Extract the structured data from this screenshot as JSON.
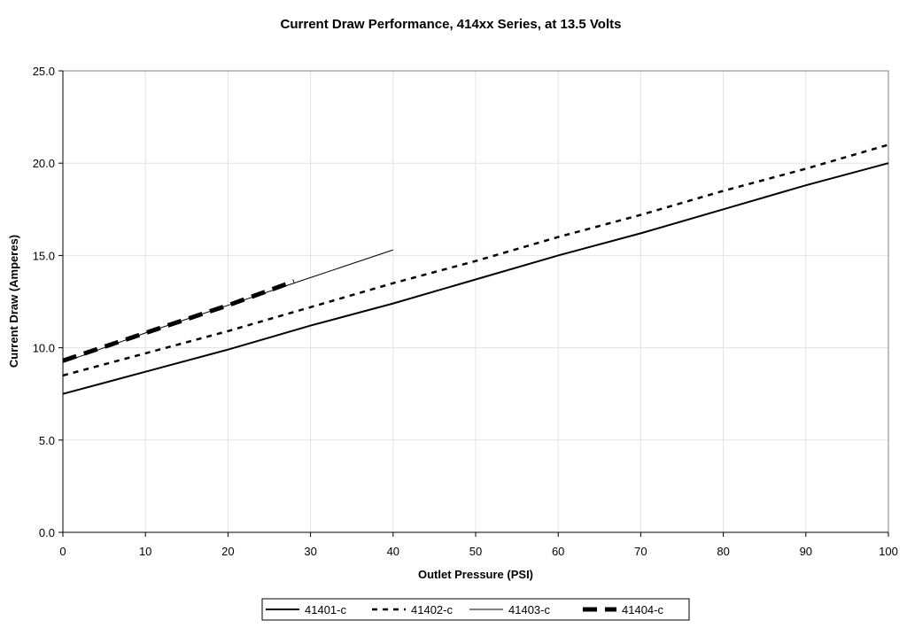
{
  "chart_data": {
    "type": "line",
    "title": "Current Draw Performance, 414xx  Series, at 13.5 Volts",
    "xlabel": "Outlet Pressure (PSI)",
    "ylabel": "Current Draw (Amperes)",
    "xlim": [
      0,
      100
    ],
    "ylim": [
      0,
      25
    ],
    "x_ticks": [
      "0",
      "10",
      "20",
      "30",
      "40",
      "50",
      "60",
      "70",
      "80",
      "90",
      "100"
    ],
    "y_ticks": [
      "0.0",
      "5.0",
      "10.0",
      "15.0",
      "20.0",
      "25.0"
    ],
    "grid": true,
    "legend_position": "bottom",
    "series": [
      {
        "name": "41401-c",
        "style": "solid",
        "color": "#000000",
        "x": [
          0,
          10,
          20,
          30,
          40,
          50,
          60,
          70,
          80,
          90,
          100
        ],
        "y": [
          7.5,
          8.7,
          9.9,
          11.2,
          12.4,
          13.7,
          15.0,
          16.2,
          17.5,
          18.8,
          20.0
        ]
      },
      {
        "name": "41402-c",
        "style": "dashed",
        "color": "#000000",
        "x": [
          0,
          10,
          20,
          30,
          40,
          50,
          60,
          70,
          80,
          90,
          100
        ],
        "y": [
          8.5,
          9.7,
          10.9,
          12.2,
          13.5,
          14.7,
          16.0,
          17.2,
          18.5,
          19.7,
          21.0
        ]
      },
      {
        "name": "41403-c",
        "style": "thin",
        "color": "#000000",
        "x": [
          0,
          10,
          20,
          30,
          40
        ],
        "y": [
          9.2,
          10.8,
          12.3,
          13.8,
          15.3
        ]
      },
      {
        "name": "41404-c",
        "style": "thick-dashed",
        "color": "#000000",
        "x": [
          0,
          10,
          20,
          28
        ],
        "y": [
          9.3,
          10.8,
          12.3,
          13.6
        ]
      }
    ]
  }
}
